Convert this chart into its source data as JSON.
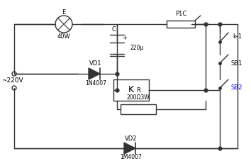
{
  "bg_color": "#f0f0f0",
  "line_color": "#333333",
  "title": "",
  "ac_label": "~220V",
  "lamp_label": "40W",
  "lamp_top_label": "E",
  "fuse_label": "P1C",
  "cap_label": "220μ",
  "cap_top": "C",
  "cap_plus": "+",
  "relay_label": "K",
  "res_label": "200Ω3W",
  "res_top": "R",
  "vd1_label": "VD1",
  "vd1_part": "1N4007",
  "vd2_label": "VD2",
  "vd2_part": "1M4007",
  "k1_label": "k-1",
  "sb1_label": "SB1",
  "sb2_label": "SB2"
}
